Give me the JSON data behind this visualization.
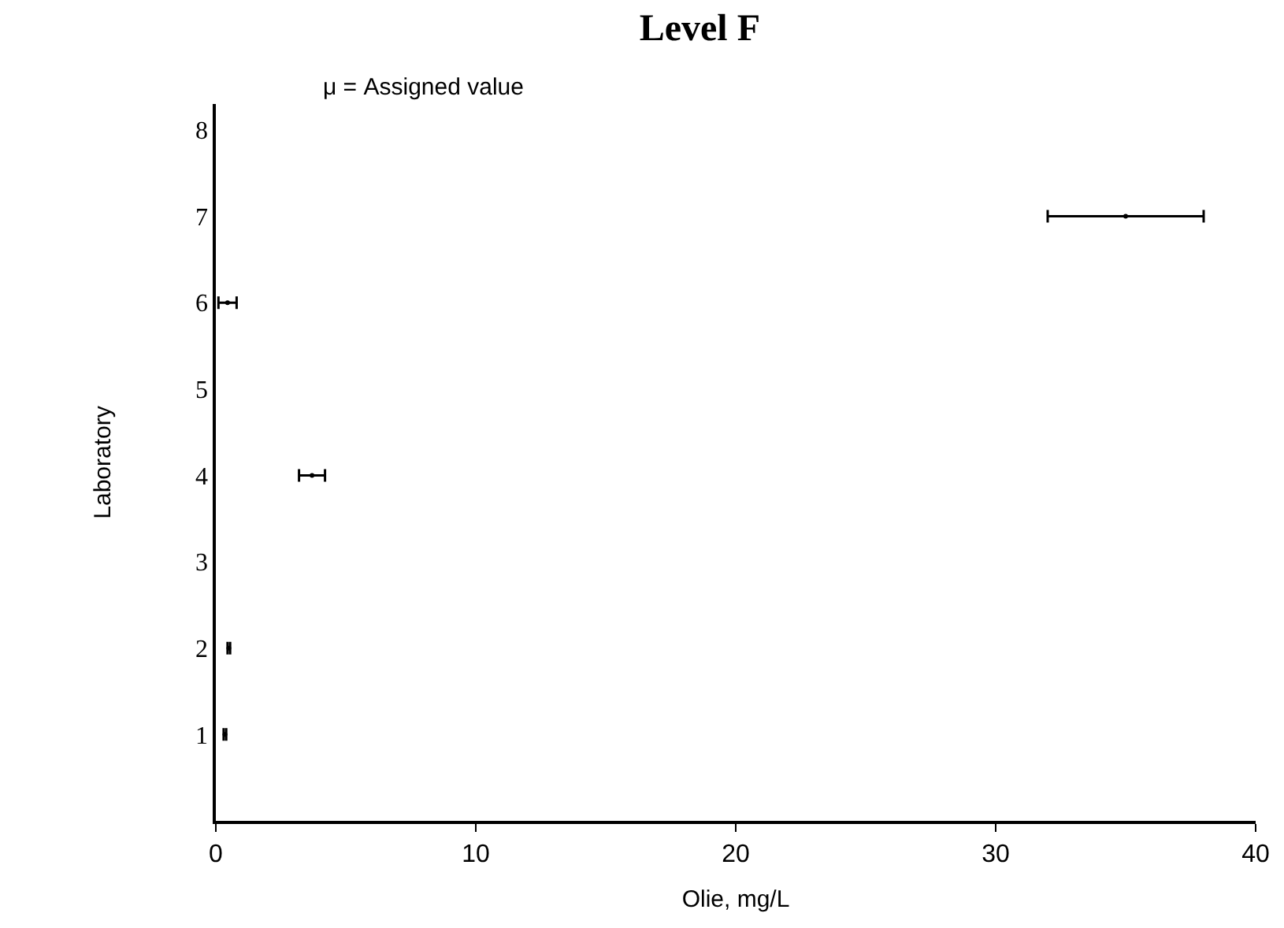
{
  "chart_data": {
    "type": "scatter",
    "title": "Level F",
    "xlabel": "Olie, mg/L",
    "ylabel": "Laboratory",
    "annotations": [
      "μ = Assigned value"
    ],
    "series": [
      {
        "color": "#000000",
        "x": [
          0.35,
          0.5,
          3.7,
          0.45,
          35
        ],
        "values": [
          1,
          2,
          4,
          6,
          7
        ],
        "xerrors": [
          0.05,
          0.05,
          0.5,
          0.35,
          3
        ]
      }
    ],
    "xlim": [
      0,
      40
    ],
    "xticks": [
      0,
      10,
      20,
      30,
      40
    ],
    "ylim": [
      0,
      8.3
    ],
    "yticks": [
      1,
      2,
      3,
      4,
      5,
      6,
      7,
      8
    ],
    "marker": "none"
  }
}
